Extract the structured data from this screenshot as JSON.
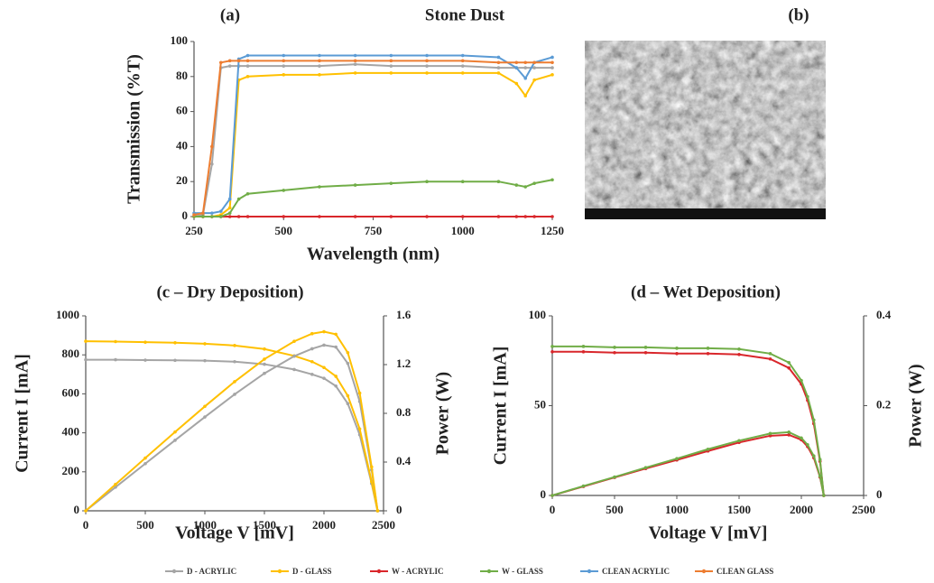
{
  "chart_data": [
    {
      "type": "line",
      "label": "(a)",
      "title": "Stone Dust",
      "xlabel": "Wavelength (nm)",
      "ylabel": "Transmission (%T)",
      "x": [
        250,
        275,
        300,
        325,
        350,
        375,
        400,
        500,
        600,
        700,
        800,
        900,
        1000,
        1100,
        1150,
        1175,
        1200,
        1250
      ],
      "xlim": [
        250,
        1250
      ],
      "xticks": [
        250,
        500,
        750,
        1000,
        1250
      ],
      "ylim": [
        0,
        100
      ],
      "yticks": [
        0,
        20,
        40,
        60,
        80,
        100
      ],
      "series": [
        {
          "name": "D - ACRYLIC",
          "color": "#a5a5a5",
          "values": [
            0,
            1,
            30,
            85,
            86,
            86,
            86,
            86,
            86,
            87,
            86,
            86,
            86,
            85,
            85,
            85,
            85,
            85
          ]
        },
        {
          "name": "D - GLASS",
          "color": "#ffc000",
          "values": [
            0,
            0,
            0,
            1,
            5,
            78,
            80,
            81,
            81,
            82,
            82,
            82,
            82,
            82,
            76,
            69,
            78,
            81
          ]
        },
        {
          "name": "W - ACRYLIC",
          "color": "#d9262b",
          "values": [
            0,
            0,
            0,
            0,
            0,
            0,
            0,
            0,
            0,
            0,
            0,
            0,
            0,
            0,
            0,
            0,
            0,
            0
          ]
        },
        {
          "name": "W - GLASS",
          "color": "#70ad47",
          "values": [
            0,
            0,
            0,
            0,
            2,
            10,
            13,
            15,
            17,
            18,
            19,
            20,
            20,
            20,
            18,
            17,
            19,
            21
          ]
        },
        {
          "name": "CLEAN ACRYLIC",
          "color": "#5b9bd5",
          "values": [
            2,
            2,
            2,
            3,
            10,
            90,
            92,
            92,
            92,
            92,
            92,
            92,
            92,
            91,
            85,
            79,
            88,
            91
          ]
        },
        {
          "name": "CLEAN GLASS",
          "color": "#ed7d31",
          "values": [
            1,
            2,
            40,
            88,
            89,
            89,
            89,
            89,
            89,
            89,
            89,
            89,
            89,
            88,
            88,
            88,
            88,
            88
          ]
        }
      ]
    },
    {
      "type": "image",
      "label": "(b)"
    },
    {
      "type": "line",
      "title": "(c – Dry Deposition)",
      "xlabel": "Voltage V [mV]",
      "ylabel": "Current I [mA]",
      "y2label": "Power (W)",
      "x": [
        0,
        250,
        500,
        750,
        1000,
        1250,
        1500,
        1750,
        1900,
        2000,
        2100,
        2200,
        2300,
        2400,
        2450
      ],
      "xlim": [
        0,
        2500
      ],
      "xticks": [
        0,
        500,
        1000,
        1500,
        2000,
        2500
      ],
      "ylim": [
        0,
        1000
      ],
      "yticks": [
        0,
        200,
        400,
        600,
        800,
        1000
      ],
      "y2lim": [
        0,
        1.6
      ],
      "y2ticks": [
        0,
        0.4,
        0.8,
        1.2,
        1.6
      ],
      "series": [
        {
          "name": "D - ACRYLIC",
          "color": "#a5a5a5",
          "values": [
            775,
            775,
            773,
            772,
            770,
            765,
            752,
            725,
            700,
            680,
            640,
            550,
            390,
            140,
            0
          ]
        },
        {
          "name": "D - GLASS",
          "color": "#ffc000",
          "values": [
            870,
            868,
            865,
            862,
            857,
            848,
            830,
            795,
            765,
            735,
            690,
            590,
            420,
            150,
            0
          ]
        },
        {
          "name": "D - ACRYLIC",
          "color": "#a5a5a5",
          "axis": "y2",
          "values": [
            0,
            0.194,
            0.387,
            0.579,
            0.77,
            0.956,
            1.128,
            1.269,
            1.33,
            1.36,
            1.344,
            1.21,
            0.897,
            0.336,
            0
          ]
        },
        {
          "name": "D - GLASS",
          "color": "#ffc000",
          "axis": "y2",
          "values": [
            0,
            0.217,
            0.433,
            0.647,
            0.857,
            1.06,
            1.245,
            1.391,
            1.454,
            1.47,
            1.449,
            1.298,
            0.966,
            0.36,
            0
          ]
        }
      ]
    },
    {
      "type": "line",
      "title": "(d – Wet Deposition)",
      "xlabel": "Voltage V [mV]",
      "ylabel": "Current I [mA]",
      "y2label": "Power (W)",
      "x": [
        0,
        250,
        500,
        750,
        1000,
        1250,
        1500,
        1750,
        1900,
        2000,
        2050,
        2100,
        2150,
        2180
      ],
      "xlim": [
        0,
        2500
      ],
      "xticks": [
        0,
        500,
        1000,
        1500,
        2000,
        2500
      ],
      "ylim": [
        0,
        100
      ],
      "yticks": [
        0,
        50,
        100
      ],
      "y2lim": [
        0,
        0.4
      ],
      "y2ticks": [
        0,
        0.2,
        0.4
      ],
      "series": [
        {
          "name": "W - ACRYLIC",
          "color": "#d9262b",
          "values": [
            80,
            80,
            79.5,
            79.5,
            79,
            79,
            78.5,
            76,
            71,
            62,
            53,
            40,
            19,
            0
          ]
        },
        {
          "name": "W - GLASS",
          "color": "#70ad47",
          "values": [
            83,
            83,
            82.5,
            82.5,
            82,
            82,
            81.5,
            79,
            74,
            64,
            55,
            42,
            20,
            0
          ]
        },
        {
          "name": "W - ACRYLIC",
          "color": "#d9262b",
          "axis": "y2",
          "values": [
            0,
            0.02,
            0.04,
            0.06,
            0.079,
            0.099,
            0.118,
            0.133,
            0.135,
            0.124,
            0.109,
            0.084,
            0.041,
            0
          ]
        },
        {
          "name": "W - GLASS",
          "color": "#70ad47",
          "axis": "y2",
          "values": [
            0,
            0.021,
            0.041,
            0.062,
            0.082,
            0.103,
            0.122,
            0.138,
            0.141,
            0.128,
            0.113,
            0.088,
            0.043,
            0
          ]
        }
      ]
    }
  ]
}
